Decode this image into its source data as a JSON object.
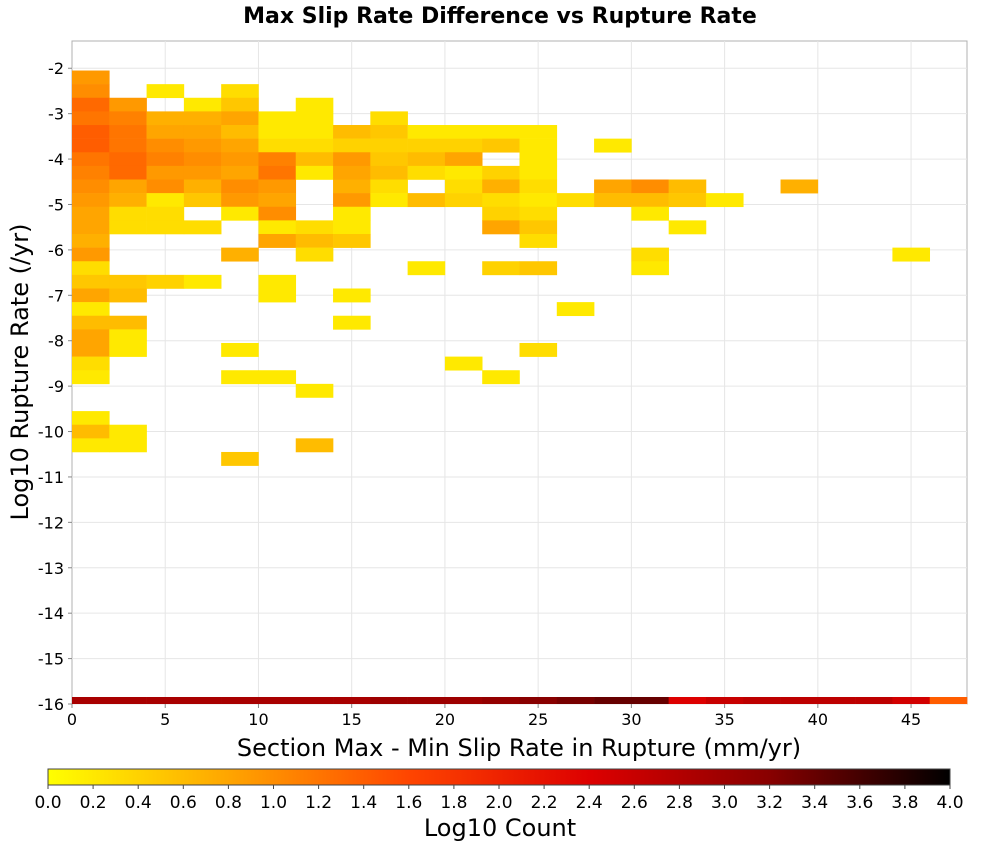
{
  "chart_data": {
    "type": "heatmap",
    "title": "Max Slip Rate Difference vs Rupture Rate",
    "xlabel": "Section Max - Min Slip Rate in Rupture (mm/yr)",
    "ylabel": "Log10 Rupture Rate (/yr)",
    "xlim": [
      0,
      48
    ],
    "ylim": [
      -16,
      -1.4
    ],
    "x_ticks": [
      "0",
      "5",
      "10",
      "15",
      "20",
      "25",
      "30",
      "35",
      "40",
      "45"
    ],
    "y_ticks": [
      "-2",
      "-3",
      "-4",
      "-5",
      "-6",
      "-7",
      "-8",
      "-9",
      "-10",
      "-11",
      "-12",
      "-13",
      "-14",
      "-15",
      "-16"
    ],
    "x_bin_width": 2,
    "y_bin_height": 0.3,
    "grid": true,
    "colorbar": {
      "label": "Log10 Count",
      "min": 0,
      "max": 4,
      "ticks": [
        "0.0",
        "0.2",
        "0.4",
        "0.6",
        "0.8",
        "1.0",
        "1.2",
        "1.4",
        "1.6",
        "1.8",
        "2.0",
        "2.2",
        "2.4",
        "2.6",
        "2.8",
        "3.0",
        "3.2",
        "3.4",
        "3.6",
        "3.8",
        "4.0"
      ],
      "colors": [
        "#ffff00",
        "#ffa500",
        "#ff4500",
        "#dd0000",
        "#880000",
        "#000000"
      ]
    },
    "cells": [
      [
        0,
        -2.2,
        0.9
      ],
      [
        0,
        -2.5,
        1.0
      ],
      [
        0,
        -2.8,
        1.3
      ],
      [
        0,
        -3.1,
        1.2
      ],
      [
        0,
        -3.4,
        1.4
      ],
      [
        0,
        -3.7,
        1.4
      ],
      [
        0,
        -4.0,
        1.2
      ],
      [
        0,
        -4.3,
        1.1
      ],
      [
        0,
        -4.6,
        1.0
      ],
      [
        0,
        -4.9,
        0.9
      ],
      [
        0,
        -5.2,
        0.8
      ],
      [
        0,
        -5.5,
        0.8
      ],
      [
        0,
        -5.8,
        0.7
      ],
      [
        0,
        -6.1,
        0.9
      ],
      [
        0,
        -6.4,
        0.3
      ],
      [
        0,
        -6.7,
        0.5
      ],
      [
        0,
        -7.0,
        0.8
      ],
      [
        0,
        -7.3,
        0.2
      ],
      [
        0,
        -7.6,
        0.6
      ],
      [
        0,
        -7.9,
        0.8
      ],
      [
        0,
        -8.2,
        0.8
      ],
      [
        0,
        -8.5,
        0.3
      ],
      [
        0,
        -8.8,
        0.2
      ],
      [
        0,
        -9.7,
        0.2
      ],
      [
        0,
        -10.0,
        0.6
      ],
      [
        0,
        -10.3,
        0.2
      ],
      [
        2,
        -2.8,
        0.9
      ],
      [
        2,
        -3.1,
        1.1
      ],
      [
        2,
        -3.4,
        1.2
      ],
      [
        2,
        -3.7,
        1.2
      ],
      [
        2,
        -4.0,
        1.3
      ],
      [
        2,
        -4.3,
        1.3
      ],
      [
        2,
        -4.6,
        0.8
      ],
      [
        2,
        -4.9,
        0.7
      ],
      [
        2,
        -5.2,
        0.3
      ],
      [
        2,
        -5.5,
        0.3
      ],
      [
        2,
        -6.7,
        0.5
      ],
      [
        2,
        -7.0,
        0.6
      ],
      [
        2,
        -7.6,
        0.6
      ],
      [
        2,
        -7.9,
        0.2
      ],
      [
        2,
        -8.2,
        0.2
      ],
      [
        2,
        -10.0,
        0.2
      ],
      [
        2,
        -10.3,
        0.2
      ],
      [
        4,
        -2.5,
        0.2
      ],
      [
        4,
        -3.1,
        0.7
      ],
      [
        4,
        -3.4,
        0.8
      ],
      [
        4,
        -3.7,
        1.0
      ],
      [
        4,
        -4.0,
        1.1
      ],
      [
        4,
        -4.3,
        0.9
      ],
      [
        4,
        -4.6,
        1.0
      ],
      [
        4,
        -4.9,
        0.2
      ],
      [
        4,
        -5.2,
        0.3
      ],
      [
        4,
        -5.5,
        0.3
      ],
      [
        4,
        -6.7,
        0.4
      ],
      [
        6,
        -2.8,
        0.2
      ],
      [
        6,
        -3.1,
        0.7
      ],
      [
        6,
        -3.4,
        0.8
      ],
      [
        6,
        -3.7,
        0.9
      ],
      [
        6,
        -4.0,
        1.0
      ],
      [
        6,
        -4.3,
        0.9
      ],
      [
        6,
        -4.6,
        0.7
      ],
      [
        6,
        -4.9,
        0.5
      ],
      [
        6,
        -5.5,
        0.3
      ],
      [
        6,
        -6.7,
        0.2
      ],
      [
        8,
        -2.5,
        0.3
      ],
      [
        8,
        -2.8,
        0.5
      ],
      [
        8,
        -3.1,
        0.8
      ],
      [
        8,
        -3.4,
        0.6
      ],
      [
        8,
        -3.7,
        0.8
      ],
      [
        8,
        -4.0,
        0.9
      ],
      [
        8,
        -4.3,
        0.8
      ],
      [
        8,
        -4.6,
        1.0
      ],
      [
        8,
        -4.9,
        0.9
      ],
      [
        8,
        -5.2,
        0.2
      ],
      [
        8,
        -6.1,
        0.7
      ],
      [
        8,
        -8.2,
        0.2
      ],
      [
        8,
        -8.8,
        0.2
      ],
      [
        8,
        -10.6,
        0.5
      ],
      [
        10,
        -3.1,
        0.2
      ],
      [
        10,
        -3.4,
        0.2
      ],
      [
        10,
        -3.7,
        0.3
      ],
      [
        10,
        -4.0,
        1.1
      ],
      [
        10,
        -4.3,
        1.2
      ],
      [
        10,
        -4.6,
        0.9
      ],
      [
        10,
        -4.9,
        0.8
      ],
      [
        10,
        -5.2,
        1.0
      ],
      [
        10,
        -5.5,
        0.2
      ],
      [
        10,
        -5.8,
        0.8
      ],
      [
        10,
        -6.7,
        0.2
      ],
      [
        10,
        -7.0,
        0.2
      ],
      [
        10,
        -8.8,
        0.2
      ],
      [
        12,
        -2.8,
        0.2
      ],
      [
        12,
        -3.1,
        0.2
      ],
      [
        12,
        -3.4,
        0.2
      ],
      [
        12,
        -3.7,
        0.3
      ],
      [
        12,
        -4.0,
        0.6
      ],
      [
        12,
        -4.3,
        0.2
      ],
      [
        12,
        -5.5,
        0.3
      ],
      [
        12,
        -5.8,
        0.6
      ],
      [
        12,
        -6.1,
        0.3
      ],
      [
        12,
        -9.1,
        0.2
      ],
      [
        12,
        -10.3,
        0.6
      ],
      [
        14,
        -3.4,
        0.6
      ],
      [
        14,
        -3.7,
        0.4
      ],
      [
        14,
        -4.0,
        0.9
      ],
      [
        14,
        -4.3,
        0.8
      ],
      [
        14,
        -4.6,
        0.7
      ],
      [
        14,
        -4.9,
        0.9
      ],
      [
        14,
        -5.2,
        0.2
      ],
      [
        14,
        -5.5,
        0.2
      ],
      [
        14,
        -5.8,
        0.5
      ],
      [
        14,
        -7.0,
        0.2
      ],
      [
        14,
        -7.6,
        0.2
      ],
      [
        16,
        -3.1,
        0.3
      ],
      [
        16,
        -3.4,
        0.5
      ],
      [
        16,
        -3.7,
        0.4
      ],
      [
        16,
        -4.0,
        0.5
      ],
      [
        16,
        -4.3,
        0.6
      ],
      [
        16,
        -4.6,
        0.3
      ],
      [
        16,
        -4.9,
        0.2
      ],
      [
        18,
        -3.4,
        0.2
      ],
      [
        18,
        -3.7,
        0.4
      ],
      [
        18,
        -4.0,
        0.6
      ],
      [
        18,
        -4.3,
        0.3
      ],
      [
        18,
        -4.9,
        0.6
      ],
      [
        18,
        -6.4,
        0.2
      ],
      [
        20,
        -3.4,
        0.2
      ],
      [
        20,
        -3.7,
        0.4
      ],
      [
        20,
        -4.0,
        0.8
      ],
      [
        20,
        -4.3,
        0.2
      ],
      [
        20,
        -4.6,
        0.3
      ],
      [
        20,
        -4.9,
        0.4
      ],
      [
        20,
        -8.5,
        0.2
      ],
      [
        22,
        -3.4,
        0.2
      ],
      [
        22,
        -3.7,
        0.5
      ],
      [
        22,
        -4.3,
        0.4
      ],
      [
        22,
        -4.6,
        0.7
      ],
      [
        22,
        -4.9,
        0.3
      ],
      [
        22,
        -5.2,
        0.4
      ],
      [
        22,
        -5.5,
        0.8
      ],
      [
        22,
        -6.4,
        0.4
      ],
      [
        22,
        -8.8,
        0.2
      ],
      [
        24,
        -3.4,
        0.2
      ],
      [
        24,
        -3.7,
        0.2
      ],
      [
        24,
        -4.0,
        0.2
      ],
      [
        24,
        -4.3,
        0.2
      ],
      [
        24,
        -4.6,
        0.3
      ],
      [
        24,
        -4.9,
        0.2
      ],
      [
        24,
        -5.2,
        0.3
      ],
      [
        24,
        -5.5,
        0.5
      ],
      [
        24,
        -5.8,
        0.3
      ],
      [
        24,
        -6.4,
        0.5
      ],
      [
        24,
        -8.2,
        0.3
      ],
      [
        26,
        -4.9,
        0.3
      ],
      [
        26,
        -7.3,
        0.2
      ],
      [
        28,
        -3.7,
        0.2
      ],
      [
        28,
        -4.6,
        0.8
      ],
      [
        28,
        -4.9,
        0.6
      ],
      [
        30,
        -4.6,
        1.0
      ],
      [
        30,
        -4.9,
        0.6
      ],
      [
        30,
        -5.2,
        0.2
      ],
      [
        30,
        -6.1,
        0.3
      ],
      [
        30,
        -6.4,
        0.2
      ],
      [
        32,
        -4.6,
        0.6
      ],
      [
        32,
        -4.9,
        0.5
      ],
      [
        32,
        -5.5,
        0.2
      ],
      [
        34,
        -4.9,
        0.2
      ],
      [
        38,
        -4.6,
        0.7
      ],
      [
        44,
        -6.1,
        0.2
      ]
    ],
    "bottom_row": {
      "y": -16.0,
      "cells": [
        [
          0,
          2.9
        ],
        [
          2,
          2.9
        ],
        [
          4,
          2.9
        ],
        [
          6,
          2.9
        ],
        [
          8,
          2.9
        ],
        [
          10,
          2.9
        ],
        [
          12,
          2.9
        ],
        [
          14,
          2.9
        ],
        [
          16,
          3.0
        ],
        [
          18,
          3.0
        ],
        [
          20,
          3.0
        ],
        [
          22,
          3.1
        ],
        [
          24,
          3.2
        ],
        [
          26,
          3.3
        ],
        [
          28,
          3.4
        ],
        [
          30,
          3.4
        ],
        [
          32,
          2.4
        ],
        [
          34,
          2.6
        ],
        [
          36,
          2.7
        ],
        [
          38,
          2.7
        ],
        [
          40,
          2.7
        ],
        [
          42,
          2.7
        ],
        [
          44,
          2.5
        ],
        [
          46,
          1.4
        ]
      ]
    }
  }
}
